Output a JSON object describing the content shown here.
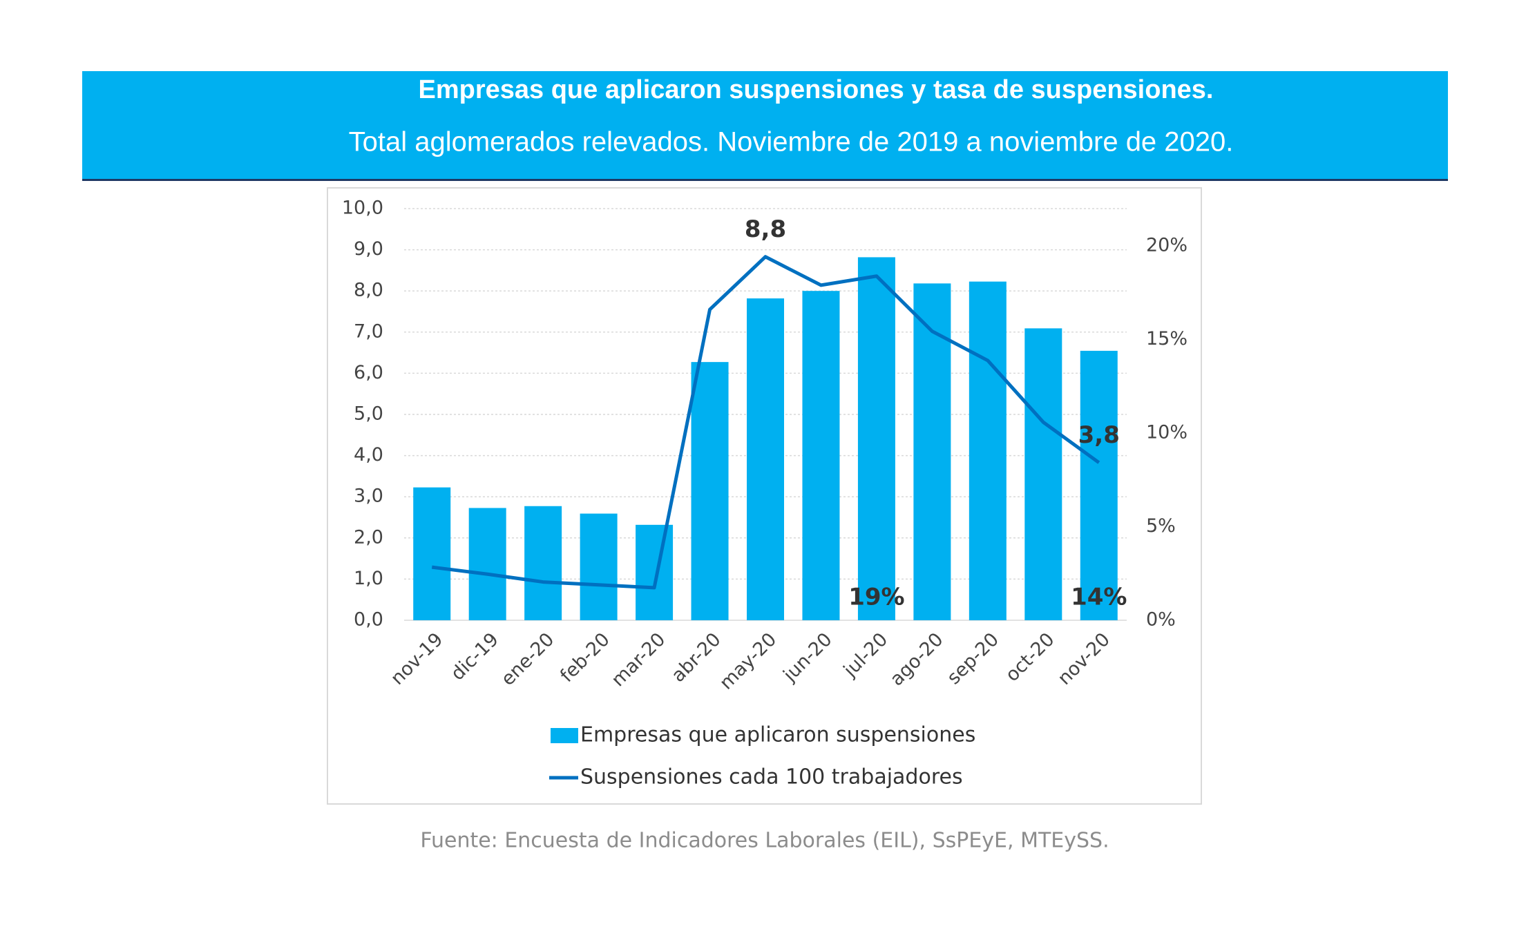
{
  "chart_data": {
    "type": "bar-line",
    "title": "Empresas que aplicaron suspensiones y tasa de suspensiones.",
    "subtitle": "Total aglomerados relevados. Noviembre de 2019 a noviembre de 2020.",
    "source": "Fuente: Encuesta de Indicadores Laborales (EIL), SsPEyE, MTEySS.",
    "categories": [
      "nov-19",
      "dic-19",
      "ene-20",
      "feb-20",
      "mar-20",
      "abr-20",
      "may-20",
      "jun-20",
      "jul-20",
      "ago-20",
      "sep-20",
      "oct-20",
      "nov-20"
    ],
    "series": [
      {
        "name": "Empresas que aplicaron suspensiones",
        "type": "bar",
        "axis": "y2",
        "color": "#00b0f0",
        "values": [
          7.1,
          6.0,
          6.1,
          5.7,
          5.1,
          13.8,
          17.2,
          17.6,
          19.4,
          18.0,
          18.1,
          15.6,
          14.4
        ],
        "value_labels": [
          null,
          null,
          null,
          null,
          null,
          null,
          null,
          null,
          "19%",
          null,
          null,
          null,
          "14%"
        ]
      },
      {
        "name": "Suspensiones cada 100 trabajadores",
        "type": "line",
        "axis": "y",
        "color": "#0070c0",
        "values": [
          1.29,
          1.12,
          0.93,
          0.86,
          0.79,
          7.55,
          8.83,
          8.14,
          8.36,
          7.02,
          6.31,
          4.81,
          3.83
        ],
        "value_labels": [
          null,
          null,
          null,
          null,
          null,
          null,
          "8,8",
          null,
          null,
          null,
          null,
          null,
          "3,8"
        ]
      }
    ],
    "ylim": [
      0,
      10
    ],
    "yticks": [
      {
        "value": 0,
        "label": "0,0"
      },
      {
        "value": 1,
        "label": "1,0"
      },
      {
        "value": 2,
        "label": "2,0"
      },
      {
        "value": 3,
        "label": "3,0"
      },
      {
        "value": 4,
        "label": "4,0"
      },
      {
        "value": 5,
        "label": "5,0"
      },
      {
        "value": 6,
        "label": "6,0"
      },
      {
        "value": 7,
        "label": "7,0"
      },
      {
        "value": 8,
        "label": "8,0"
      },
      {
        "value": 9,
        "label": "9,0"
      },
      {
        "value": 10,
        "label": "10,0"
      }
    ],
    "y2lim": [
      0,
      22
    ],
    "y2ticks": [
      {
        "value": 0,
        "label": "0%"
      },
      {
        "value": 5,
        "label": "5%"
      },
      {
        "value": 10,
        "label": "10%"
      },
      {
        "value": 15,
        "label": "15%"
      },
      {
        "value": 20,
        "label": "20%"
      }
    ],
    "grid": true
  }
}
